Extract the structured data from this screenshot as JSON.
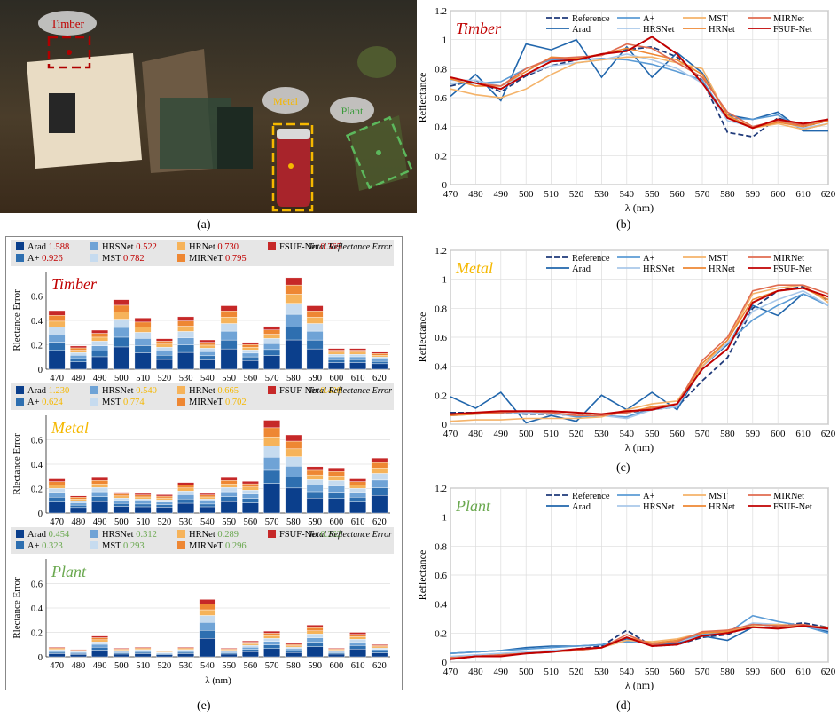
{
  "panel_labels": [
    "(a)",
    "(b)",
    "(c)",
    "(d)",
    "(e)"
  ],
  "photo": {
    "labels": [
      {
        "text": "Timber",
        "color": "#c00000"
      },
      {
        "text": "Metal",
        "color": "#f5b800"
      },
      {
        "text": "Plant",
        "color": "#3a9a3a"
      }
    ]
  },
  "series_colors": {
    "Reference": "#1f3a7a",
    "A+": "#5b9bd5",
    "MST": "#f4b36a",
    "MIRNet": "#e06c50",
    "Arad": "#2166ac",
    "HRSNet": "#a9c8ea",
    "HRNet": "#ee8733",
    "FSUF-Net": "#c00000"
  },
  "chart_data": [
    {
      "id": "b",
      "type": "line",
      "title": "Timber",
      "title_color": "#c00000",
      "xlabel": "λ (nm)",
      "ylabel": "Reflectance",
      "xlim": [
        470,
        620
      ],
      "ylim": [
        0,
        1.2
      ],
      "xticks": [
        470,
        480,
        490,
        500,
        510,
        520,
        530,
        540,
        550,
        560,
        570,
        580,
        590,
        600,
        610,
        620
      ],
      "yticks": [
        0,
        0.2,
        0.4,
        0.6,
        0.8,
        1,
        1.2
      ],
      "grid": true,
      "legend": "top",
      "x": [
        470,
        480,
        490,
        500,
        510,
        520,
        530,
        540,
        550,
        560,
        570,
        580,
        590,
        600,
        610,
        620
      ],
      "series": [
        {
          "name": "Reference",
          "values": [
            0.68,
            0.72,
            0.64,
            0.75,
            0.82,
            0.86,
            0.9,
            0.93,
            0.95,
            0.88,
            0.72,
            0.36,
            0.33,
            0.46,
            0.4,
            0.44
          ]
        },
        {
          "name": "Arad",
          "values": [
            0.61,
            0.76,
            0.58,
            0.97,
            0.93,
            1.0,
            0.74,
            0.95,
            0.74,
            0.91,
            0.77,
            0.48,
            0.45,
            0.5,
            0.37,
            0.37
          ]
        },
        {
          "name": "A+",
          "values": [
            0.7,
            0.7,
            0.71,
            0.8,
            0.86,
            0.86,
            0.87,
            0.86,
            0.83,
            0.78,
            0.72,
            0.46,
            0.45,
            0.48,
            0.38,
            0.42
          ]
        },
        {
          "name": "HRSNet",
          "values": [
            0.72,
            0.72,
            0.68,
            0.76,
            0.82,
            0.84,
            0.86,
            0.9,
            0.86,
            0.8,
            0.7,
            0.44,
            0.4,
            0.44,
            0.39,
            0.42
          ]
        },
        {
          "name": "MST",
          "values": [
            0.66,
            0.62,
            0.6,
            0.66,
            0.76,
            0.84,
            0.86,
            0.88,
            0.88,
            0.84,
            0.8,
            0.47,
            0.39,
            0.42,
            0.38,
            0.42
          ]
        },
        {
          "name": "HRNet",
          "values": [
            0.73,
            0.68,
            0.68,
            0.78,
            0.88,
            0.87,
            0.9,
            0.94,
            0.9,
            0.86,
            0.76,
            0.48,
            0.39,
            0.43,
            0.4,
            0.44
          ]
        },
        {
          "name": "MIRNet",
          "values": [
            0.74,
            0.7,
            0.68,
            0.8,
            0.87,
            0.88,
            0.89,
            0.97,
            0.94,
            0.84,
            0.74,
            0.5,
            0.4,
            0.44,
            0.41,
            0.45
          ]
        },
        {
          "name": "FSUF-Net",
          "values": [
            0.74,
            0.7,
            0.66,
            0.76,
            0.85,
            0.86,
            0.9,
            0.92,
            1.02,
            0.9,
            0.7,
            0.46,
            0.39,
            0.45,
            0.42,
            0.45
          ]
        }
      ]
    },
    {
      "id": "c",
      "type": "line",
      "title": "Metal",
      "title_color": "#f5b800",
      "xlabel": "λ (nm)",
      "ylabel": "Reflectance",
      "xlim": [
        470,
        620
      ],
      "ylim": [
        0,
        1.2
      ],
      "xticks": [
        470,
        480,
        490,
        500,
        510,
        520,
        530,
        540,
        550,
        560,
        570,
        580,
        590,
        600,
        610,
        620
      ],
      "yticks": [
        0,
        0.2,
        0.4,
        0.6,
        0.8,
        1,
        1.2
      ],
      "grid": true,
      "legend": "top",
      "x": [
        470,
        480,
        490,
        500,
        510,
        520,
        530,
        540,
        550,
        560,
        570,
        580,
        590,
        600,
        610,
        620
      ],
      "series": [
        {
          "name": "Reference",
          "values": [
            0.08,
            0.08,
            0.08,
            0.07,
            0.07,
            0.06,
            0.06,
            0.08,
            0.1,
            0.12,
            0.3,
            0.46,
            0.8,
            0.92,
            0.95,
            0.85
          ]
        },
        {
          "name": "Arad",
          "values": [
            0.19,
            0.11,
            0.22,
            0.01,
            0.06,
            0.02,
            0.2,
            0.1,
            0.22,
            0.1,
            0.4,
            0.55,
            0.82,
            0.75,
            0.9,
            0.82
          ]
        },
        {
          "name": "A+",
          "values": [
            0.06,
            0.07,
            0.08,
            0.08,
            0.08,
            0.05,
            0.06,
            0.05,
            0.11,
            0.12,
            0.4,
            0.56,
            0.72,
            0.82,
            0.9,
            0.82
          ]
        },
        {
          "name": "HRSNet",
          "values": [
            0.06,
            0.07,
            0.08,
            0.08,
            0.07,
            0.06,
            0.06,
            0.04,
            0.1,
            0.12,
            0.4,
            0.56,
            0.78,
            0.86,
            0.92,
            0.82
          ]
        },
        {
          "name": "MST",
          "values": [
            0.02,
            0.03,
            0.03,
            0.04,
            0.04,
            0.04,
            0.05,
            0.1,
            0.14,
            0.16,
            0.4,
            0.58,
            0.9,
            0.94,
            0.96,
            0.84
          ]
        },
        {
          "name": "HRNet",
          "values": [
            0.06,
            0.07,
            0.08,
            0.09,
            0.08,
            0.06,
            0.06,
            0.08,
            0.12,
            0.14,
            0.42,
            0.58,
            0.86,
            0.92,
            0.94,
            0.86
          ]
        },
        {
          "name": "MIRNet",
          "values": [
            0.07,
            0.08,
            0.08,
            0.09,
            0.08,
            0.06,
            0.06,
            0.08,
            0.11,
            0.14,
            0.44,
            0.6,
            0.92,
            0.96,
            0.96,
            0.9
          ]
        },
        {
          "name": "FSUF-Net",
          "values": [
            0.07,
            0.08,
            0.09,
            0.09,
            0.09,
            0.08,
            0.07,
            0.09,
            0.1,
            0.14,
            0.38,
            0.52,
            0.84,
            0.92,
            0.94,
            0.88
          ]
        }
      ]
    },
    {
      "id": "d",
      "type": "line",
      "title": "Plant",
      "title_color": "#6aa84f",
      "xlabel": "λ (nm)",
      "ylabel": "Reflectance",
      "xlim": [
        470,
        620
      ],
      "ylim": [
        0,
        1.2
      ],
      "xticks": [
        470,
        480,
        490,
        500,
        510,
        520,
        530,
        540,
        550,
        560,
        570,
        580,
        590,
        600,
        610,
        620
      ],
      "yticks": [
        0,
        0.2,
        0.4,
        0.6,
        0.8,
        1,
        1.2
      ],
      "grid": true,
      "legend": "top",
      "x": [
        470,
        480,
        490,
        500,
        510,
        520,
        530,
        540,
        550,
        560,
        570,
        580,
        590,
        600,
        610,
        620
      ],
      "series": [
        {
          "name": "Reference",
          "values": [
            0.02,
            0.04,
            0.05,
            0.06,
            0.07,
            0.09,
            0.11,
            0.22,
            0.11,
            0.12,
            0.17,
            0.19,
            0.26,
            0.25,
            0.27,
            0.24
          ]
        },
        {
          "name": "Arad",
          "values": [
            0.06,
            0.07,
            0.08,
            0.1,
            0.11,
            0.11,
            0.12,
            0.16,
            0.12,
            0.13,
            0.18,
            0.15,
            0.24,
            0.24,
            0.25,
            0.21
          ]
        },
        {
          "name": "A+",
          "values": [
            0.06,
            0.07,
            0.08,
            0.09,
            0.1,
            0.11,
            0.12,
            0.14,
            0.13,
            0.14,
            0.19,
            0.2,
            0.32,
            0.28,
            0.25,
            0.2
          ]
        },
        {
          "name": "HRSNet",
          "values": [
            0.04,
            0.05,
            0.06,
            0.07,
            0.08,
            0.09,
            0.1,
            0.15,
            0.13,
            0.14,
            0.18,
            0.2,
            0.27,
            0.26,
            0.25,
            0.22
          ]
        },
        {
          "name": "MST",
          "values": [
            0.03,
            0.04,
            0.05,
            0.06,
            0.07,
            0.09,
            0.1,
            0.15,
            0.14,
            0.16,
            0.2,
            0.22,
            0.25,
            0.26,
            0.25,
            0.24
          ]
        },
        {
          "name": "HRNet",
          "values": [
            0.03,
            0.04,
            0.05,
            0.06,
            0.07,
            0.08,
            0.1,
            0.17,
            0.13,
            0.15,
            0.2,
            0.21,
            0.24,
            0.24,
            0.25,
            0.24
          ]
        },
        {
          "name": "MIRNet",
          "values": [
            0.03,
            0.04,
            0.05,
            0.06,
            0.07,
            0.08,
            0.1,
            0.19,
            0.12,
            0.14,
            0.21,
            0.22,
            0.26,
            0.25,
            0.26,
            0.23
          ]
        },
        {
          "name": "FSUF-Net",
          "values": [
            0.02,
            0.04,
            0.04,
            0.06,
            0.07,
            0.09,
            0.1,
            0.17,
            0.11,
            0.12,
            0.18,
            0.2,
            0.24,
            0.23,
            0.25,
            0.23
          ]
        }
      ]
    },
    {
      "id": "e",
      "type": "bar",
      "stacked": true,
      "xlabel": "λ (nm)",
      "ylabel": "Rlectance Error",
      "legend_title": "Total Reflectance Error",
      "categories": [
        "470",
        "480",
        "490",
        "500",
        "510",
        "520",
        "530",
        "540",
        "550",
        "560",
        "570",
        "580",
        "590",
        "600",
        "610",
        "620"
      ],
      "series_order": [
        "Arad",
        "A+",
        "HRSNet",
        "MST",
        "HRNet",
        "MIRNeT",
        "FSUF-Net"
      ],
      "series_colors": [
        "#0b3f8c",
        "#2e6fb0",
        "#6fa3d6",
        "#c6dbef",
        "#f6b35a",
        "#ee8733",
        "#c62828"
      ],
      "yticks": [
        0,
        0.2,
        0.4,
        0.6
      ],
      "ylim": [
        0,
        0.8
      ],
      "subplots": [
        {
          "title": "Timber",
          "title_color": "#c00000",
          "value_color": "#c00000",
          "totals": {
            "Arad": "1.588",
            "A+": "0.926",
            "HRSNet": "0.522",
            "MST": "0.782",
            "HRNet": "0.730",
            "MIRNeT": "0.795",
            "FSUF-Net": "0.365"
          },
          "totals_per_category": [
            0.48,
            0.19,
            0.32,
            0.57,
            0.42,
            0.25,
            0.43,
            0.24,
            0.52,
            0.22,
            0.35,
            0.75,
            0.52,
            0.17,
            0.17,
            0.14
          ]
        },
        {
          "title": "Metal",
          "title_color": "#f5b800",
          "value_color": "#f5b800",
          "totals": {
            "Arad": "1.230",
            "A+": "0.624",
            "HRSNet": "0.540",
            "MST": "0.774",
            "HRNet": "0.665",
            "MIRNeT": "0.702",
            "FSUF-Net": "0.428"
          },
          "totals_per_category": [
            0.28,
            0.14,
            0.29,
            0.17,
            0.16,
            0.15,
            0.25,
            0.16,
            0.29,
            0.26,
            0.76,
            0.64,
            0.38,
            0.37,
            0.28,
            0.45
          ]
        },
        {
          "title": "Plant",
          "title_color": "#6aa84f",
          "value_color": "#6aa84f",
          "totals": {
            "Arad": "0.454",
            "A+": "0.323",
            "HRSNet": "0.312",
            "MST": "0.293",
            "HRNet": "0.289",
            "MIRNeT": "0.296",
            "FSUF-Net": "0.262"
          },
          "totals_per_category": [
            0.08,
            0.06,
            0.17,
            0.07,
            0.08,
            0.05,
            0.08,
            0.47,
            0.07,
            0.13,
            0.21,
            0.11,
            0.26,
            0.07,
            0.2,
            0.1
          ]
        }
      ]
    }
  ]
}
